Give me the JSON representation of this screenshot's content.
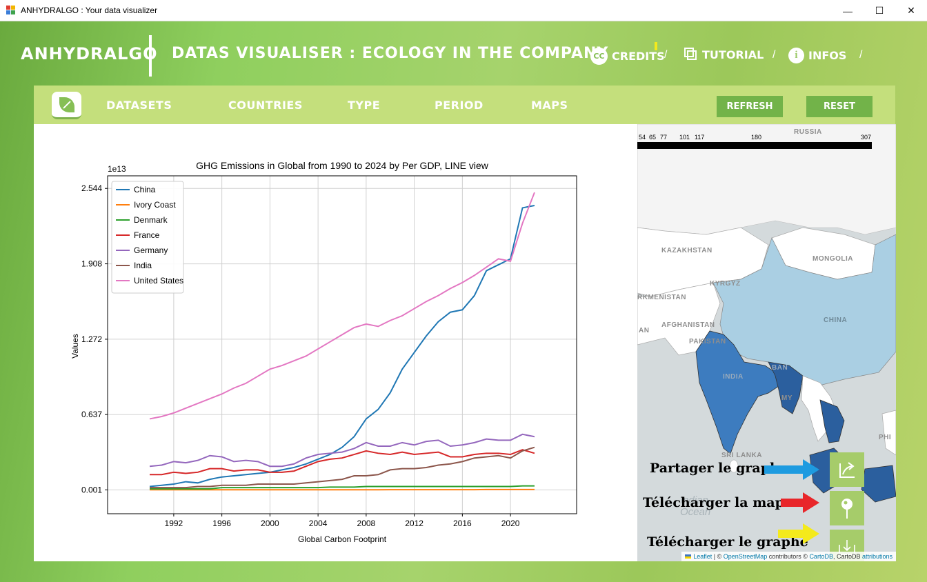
{
  "window": {
    "title": "ANHYDRALGO : Your data visualizer",
    "minimize": "—",
    "maximize": "☐",
    "close": "✕"
  },
  "header": {
    "brand": "ANHYDRALGO",
    "subtitle": "DATAS VISUALISER : ECOLOGY IN THE COMPANY",
    "credits": "CREDITS",
    "tutorial": "TUTORIAL",
    "infos": "INFOS",
    "separator": "/",
    "cc_text": "CC",
    "info_text": "i"
  },
  "nav": {
    "items": [
      "DATASETS",
      "COUNTRIES",
      "TYPE",
      "PERIOD",
      "MAPS"
    ],
    "refresh": "REFRESH",
    "reset": "RESET"
  },
  "chart_data": {
    "type": "line",
    "title": "GHG Emissions in Global from 1990 to 2024 by Per GDP, LINE view",
    "xlabel": "Global Carbon Footprint",
    "ylabel": "Values",
    "y_multiplier_label": "1e13",
    "x": [
      1990,
      1991,
      1992,
      1993,
      1994,
      1995,
      1996,
      1997,
      1998,
      1999,
      2000,
      2001,
      2002,
      2003,
      2004,
      2005,
      2006,
      2007,
      2008,
      2009,
      2010,
      2011,
      2012,
      2013,
      2014,
      2015,
      2016,
      2017,
      2018,
      2019,
      2020,
      2021,
      2022
    ],
    "xlim": [
      1986.5,
      2025.5
    ],
    "ylim": [
      -0.2,
      2.65
    ],
    "x_ticks": [
      1992,
      1996,
      2000,
      2004,
      2008,
      2012,
      2016,
      2020
    ],
    "y_ticks": [
      0.001,
      0.637,
      1.272,
      1.908,
      2.544
    ],
    "y_tick_labels": [
      "0.001",
      "0.637",
      "1.272",
      "1.908",
      "2.544"
    ],
    "grid": true,
    "legend_position": "upper-left",
    "series": [
      {
        "name": "China",
        "color": "#1f77b4",
        "values": [
          0.03,
          0.04,
          0.05,
          0.07,
          0.06,
          0.09,
          0.11,
          0.12,
          0.13,
          0.14,
          0.15,
          0.17,
          0.19,
          0.22,
          0.26,
          0.3,
          0.36,
          0.45,
          0.6,
          0.68,
          0.82,
          1.02,
          1.16,
          1.3,
          1.42,
          1.5,
          1.52,
          1.64,
          1.85,
          1.9,
          1.95,
          2.38,
          2.4
        ]
      },
      {
        "name": "Ivory Coast",
        "color": "#ff7f0e",
        "values": [
          0.002,
          0.002,
          0.002,
          0.002,
          0.002,
          0.002,
          0.002,
          0.002,
          0.002,
          0.002,
          0.002,
          0.002,
          0.002,
          0.002,
          0.002,
          0.002,
          0.002,
          0.002,
          0.002,
          0.002,
          0.003,
          0.003,
          0.003,
          0.003,
          0.003,
          0.003,
          0.003,
          0.003,
          0.004,
          0.004,
          0.004,
          0.004,
          0.004
        ]
      },
      {
        "name": "Denmark",
        "color": "#2ca02c",
        "values": [
          0.01,
          0.01,
          0.01,
          0.01,
          0.01,
          0.01,
          0.02,
          0.02,
          0.02,
          0.02,
          0.02,
          0.02,
          0.02,
          0.02,
          0.02,
          0.025,
          0.025,
          0.025,
          0.03,
          0.03,
          0.03,
          0.03,
          0.03,
          0.03,
          0.03,
          0.03,
          0.03,
          0.03,
          0.03,
          0.03,
          0.03,
          0.035,
          0.035
        ]
      },
      {
        "name": "France",
        "color": "#d62728",
        "values": [
          0.13,
          0.13,
          0.15,
          0.14,
          0.15,
          0.18,
          0.18,
          0.16,
          0.17,
          0.17,
          0.15,
          0.15,
          0.16,
          0.2,
          0.24,
          0.26,
          0.27,
          0.3,
          0.33,
          0.31,
          0.3,
          0.32,
          0.3,
          0.31,
          0.32,
          0.28,
          0.28,
          0.3,
          0.31,
          0.31,
          0.3,
          0.34,
          0.31
        ]
      },
      {
        "name": "Germany",
        "color": "#9467bd",
        "values": [
          0.2,
          0.21,
          0.24,
          0.23,
          0.25,
          0.29,
          0.28,
          0.24,
          0.25,
          0.24,
          0.2,
          0.2,
          0.22,
          0.27,
          0.3,
          0.31,
          0.32,
          0.35,
          0.4,
          0.37,
          0.37,
          0.4,
          0.38,
          0.41,
          0.42,
          0.37,
          0.38,
          0.4,
          0.43,
          0.42,
          0.42,
          0.47,
          0.45
        ]
      },
      {
        "name": "India",
        "color": "#8c564b",
        "values": [
          0.02,
          0.02,
          0.02,
          0.02,
          0.03,
          0.03,
          0.04,
          0.04,
          0.04,
          0.05,
          0.05,
          0.05,
          0.05,
          0.06,
          0.07,
          0.08,
          0.09,
          0.12,
          0.12,
          0.13,
          0.17,
          0.18,
          0.18,
          0.19,
          0.21,
          0.22,
          0.24,
          0.27,
          0.28,
          0.29,
          0.27,
          0.33,
          0.36
        ]
      },
      {
        "name": "United States",
        "color": "#e377c2",
        "values": [
          0.6,
          0.62,
          0.65,
          0.69,
          0.73,
          0.77,
          0.81,
          0.86,
          0.9,
          0.96,
          1.02,
          1.05,
          1.09,
          1.13,
          1.19,
          1.25,
          1.31,
          1.37,
          1.4,
          1.38,
          1.43,
          1.47,
          1.53,
          1.59,
          1.64,
          1.7,
          1.75,
          1.81,
          1.88,
          1.95,
          1.93,
          2.25,
          2.51
        ]
      }
    ]
  },
  "map": {
    "legend_ticks": [
      "54",
      "65",
      "77",
      "101",
      "117",
      "180",
      "307"
    ],
    "labels": [
      "RUSSIA",
      "KAZAKHSTAN",
      "MONGOLIA",
      "CHINA",
      "INDIA",
      "SRI LANKA",
      "Indian",
      "Ocean",
      "PHI",
      "MY",
      "BAN",
      "AN",
      "KYRGYZ",
      "RKMENISTAN",
      "AFGHANISTAN",
      "PAKISTAN"
    ],
    "actions": {
      "share": "Partager le graphe",
      "download_map": "Télécharger la map",
      "download_graph": "Télécharger le graphe"
    },
    "arrow_colors": [
      "#1e9be0",
      "#e8262a",
      "#f4ea1c"
    ],
    "attribution": {
      "leaflet": "Leaflet",
      "sep": " | © ",
      "osm": "OpenStreetMap",
      "contributors": " contributors © ",
      "cartodb": "CartoDB",
      "tail": ", CartoDB ",
      "attributions": "attributions"
    }
  }
}
